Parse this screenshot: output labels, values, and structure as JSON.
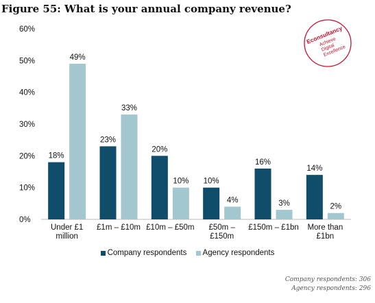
{
  "figure_title": "Figure 55: What is your annual company revenue?",
  "brand": {
    "name": "Econsultancy",
    "tagline": [
      "Achieve",
      "Digital",
      "Excellence"
    ],
    "color": "#c8102e"
  },
  "legend": {
    "company_label": "Company respondents",
    "agency_label": "Agency respondents"
  },
  "notes": {
    "company": "Company respondents: 306",
    "agency": "Agency respondents: 296"
  },
  "chart_data": {
    "type": "bar",
    "title": "Figure 55: What is your annual company revenue?",
    "categories": [
      [
        "Under £1",
        "million"
      ],
      [
        "£1m – £10m"
      ],
      [
        "£10m – £50m"
      ],
      [
        "£50m –",
        "£150m"
      ],
      [
        "£150m – £1bn"
      ],
      [
        "More than",
        "£1bn"
      ]
    ],
    "series": [
      {
        "name": "Company respondents",
        "color": "#0f4d6b",
        "values": [
          18,
          23,
          20,
          10,
          16,
          14
        ],
        "labels": [
          "18%",
          "23%",
          "20%",
          "10%",
          "16%",
          "14%"
        ]
      },
      {
        "name": "Agency respondents",
        "color": "#a3c7cf",
        "values": [
          49,
          33,
          10,
          4,
          3,
          2
        ],
        "labels": [
          "49%",
          "33%",
          "10%",
          "4%",
          "3%",
          "2%"
        ]
      }
    ],
    "ylim": [
      0,
      60
    ],
    "yticks": [
      "0%",
      "10%",
      "20%",
      "30%",
      "40%",
      "50%",
      "60%"
    ],
    "xlabel": "",
    "ylabel": "",
    "grid": false,
    "legend_position": "bottom"
  }
}
